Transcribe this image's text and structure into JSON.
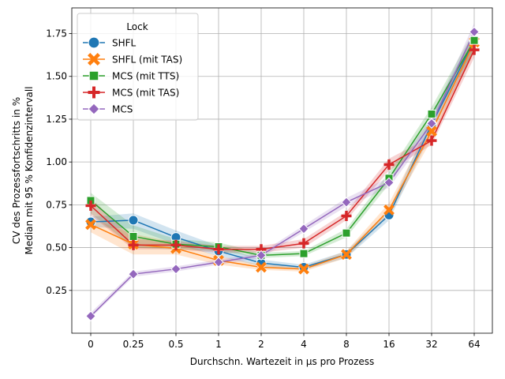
{
  "chart_data": {
    "type": "line",
    "categories": [
      "0",
      "0.25",
      "0.5",
      "1",
      "2",
      "4",
      "8",
      "16",
      "32",
      "64"
    ],
    "xlabel": "Durchschn. Wartezeit in µs pro Prozess",
    "ylabel_lines": [
      "CV des Prozessfortschritts in %",
      "Median mit 95 % Konfidenzintervall"
    ],
    "ylim": [
      0.0,
      1.9
    ],
    "yticks": [
      0.25,
      0.5,
      0.75,
      1.0,
      1.25,
      1.5,
      1.75
    ],
    "ytick_labels": [
      "0.25",
      "0.50",
      "0.75",
      "1.00",
      "1.25",
      "1.50",
      "1.75"
    ],
    "grid": true,
    "legend": {
      "title": "Lock",
      "placement": "top-left"
    },
    "series": [
      {
        "name": "SHFL",
        "marker": "circle",
        "color": "#1f77b4",
        "values": [
          0.65,
          0.66,
          0.56,
          0.48,
          0.41,
          0.385,
          0.46,
          0.69,
          1.22,
          1.71
        ],
        "ci_low": [
          0.62,
          0.61,
          0.52,
          0.45,
          0.39,
          0.37,
          0.44,
          0.66,
          1.17,
          1.65
        ],
        "ci_high": [
          0.68,
          0.7,
          0.6,
          0.51,
          0.43,
          0.4,
          0.48,
          0.72,
          1.27,
          1.76
        ]
      },
      {
        "name": "SHFL (mit TAS)",
        "marker": "x",
        "color": "#ff7f0e",
        "values": [
          0.635,
          0.52,
          0.495,
          0.425,
          0.385,
          0.375,
          0.46,
          0.72,
          1.18,
          1.7
        ],
        "ci_low": [
          0.59,
          0.46,
          0.46,
          0.4,
          0.37,
          0.36,
          0.44,
          0.69,
          1.13,
          1.64
        ],
        "ci_high": [
          0.67,
          0.58,
          0.53,
          0.45,
          0.4,
          0.39,
          0.48,
          0.76,
          1.23,
          1.76
        ]
      },
      {
        "name": "MCS (mit TTS)",
        "marker": "square",
        "color": "#2ca02c",
        "values": [
          0.775,
          0.565,
          0.52,
          0.505,
          0.455,
          0.465,
          0.585,
          0.905,
          1.28,
          1.71
        ],
        "ci_low": [
          0.7,
          0.5,
          0.49,
          0.48,
          0.44,
          0.45,
          0.56,
          0.87,
          1.23,
          1.65
        ],
        "ci_high": [
          0.82,
          0.63,
          0.55,
          0.53,
          0.47,
          0.48,
          0.61,
          0.94,
          1.32,
          1.77
        ]
      },
      {
        "name": "MCS (mit TAS)",
        "marker": "plus",
        "color": "#d62728",
        "values": [
          0.745,
          0.515,
          0.515,
          0.49,
          0.49,
          0.525,
          0.685,
          0.985,
          1.125,
          1.655
        ],
        "ci_low": [
          0.69,
          0.49,
          0.49,
          0.47,
          0.47,
          0.5,
          0.66,
          0.95,
          1.1,
          1.61
        ],
        "ci_high": [
          0.79,
          0.55,
          0.54,
          0.51,
          0.51,
          0.55,
          0.71,
          1.02,
          1.15,
          1.7
        ]
      },
      {
        "name": "MCS",
        "marker": "diamond",
        "color": "#9467bd",
        "values": [
          0.1,
          0.345,
          0.375,
          0.415,
          0.455,
          0.61,
          0.765,
          0.88,
          1.225,
          1.76
        ],
        "ci_low": [
          0.09,
          0.33,
          0.36,
          0.4,
          0.44,
          0.59,
          0.74,
          0.85,
          1.19,
          1.71
        ],
        "ci_high": [
          0.12,
          0.36,
          0.39,
          0.43,
          0.47,
          0.63,
          0.79,
          0.91,
          1.26,
          1.81
        ]
      }
    ]
  }
}
